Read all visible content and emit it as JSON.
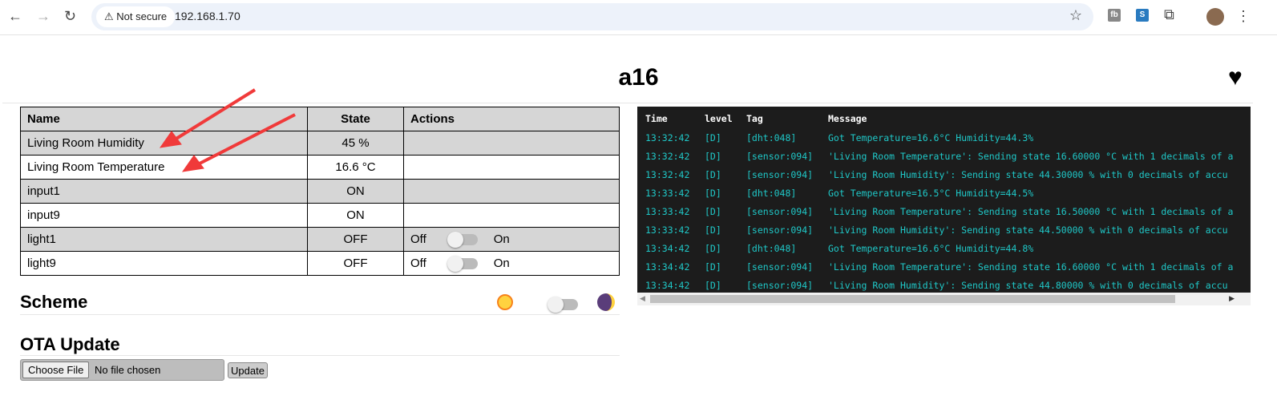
{
  "browser": {
    "not_secure": "Not secure",
    "url": "192.168.1.70",
    "ext1": "fb",
    "ext2": "S"
  },
  "page": {
    "title": "a16"
  },
  "table": {
    "headers": [
      "Name",
      "State",
      "Actions"
    ],
    "rows": [
      {
        "name": "Living Room Humidity",
        "state": "45 %"
      },
      {
        "name": "Living Room Temperature",
        "state": "16.6 °C"
      },
      {
        "name": "input1",
        "state": "ON"
      },
      {
        "name": "input9",
        "state": "ON"
      },
      {
        "name": "light1",
        "state": "OFF",
        "off": "Off",
        "on": "On",
        "toggle_on": false
      },
      {
        "name": "light9",
        "state": "OFF",
        "off": "Off",
        "on": "On",
        "toggle_on": false
      }
    ]
  },
  "scheme": {
    "title": "Scheme",
    "dark_mode": false
  },
  "ota": {
    "title": "OTA Update",
    "choose": "Choose File",
    "no_file": "No file chosen",
    "update": "Update"
  },
  "log": {
    "headers": [
      "Time",
      "level",
      "Tag",
      "Message"
    ],
    "rows": [
      [
        "13:32:42",
        "[D]",
        "[dht:048]",
        "Got Temperature=16.6°C Humidity=44.3%"
      ],
      [
        "13:32:42",
        "[D]",
        "[sensor:094]",
        "'Living Room Temperature': Sending state 16.60000 °C with 1 decimals of a"
      ],
      [
        "13:32:42",
        "[D]",
        "[sensor:094]",
        "'Living Room Humidity': Sending state 44.30000 % with 0 decimals of accu"
      ],
      [
        "13:33:42",
        "[D]",
        "[dht:048]",
        "Got Temperature=16.5°C Humidity=44.5%"
      ],
      [
        "13:33:42",
        "[D]",
        "[sensor:094]",
        "'Living Room Temperature': Sending state 16.50000 °C with 1 decimals of a"
      ],
      [
        "13:33:42",
        "[D]",
        "[sensor:094]",
        "'Living Room Humidity': Sending state 44.50000 % with 0 decimals of accu"
      ],
      [
        "13:34:42",
        "[D]",
        "[dht:048]",
        "Got Temperature=16.6°C Humidity=44.8%"
      ],
      [
        "13:34:42",
        "[D]",
        "[sensor:094]",
        "'Living Room Temperature': Sending state 16.60000 °C with 1 decimals of a"
      ],
      [
        "13:34:42",
        "[D]",
        "[sensor:094]",
        "'Living Room Humidity': Sending state 44.80000 % with 0 decimals of accu"
      ]
    ]
  },
  "colors": {
    "log_bg": "#1c1c1c",
    "log_text": "#1fc8c8",
    "annotation_arrow": "#f03a3a"
  }
}
